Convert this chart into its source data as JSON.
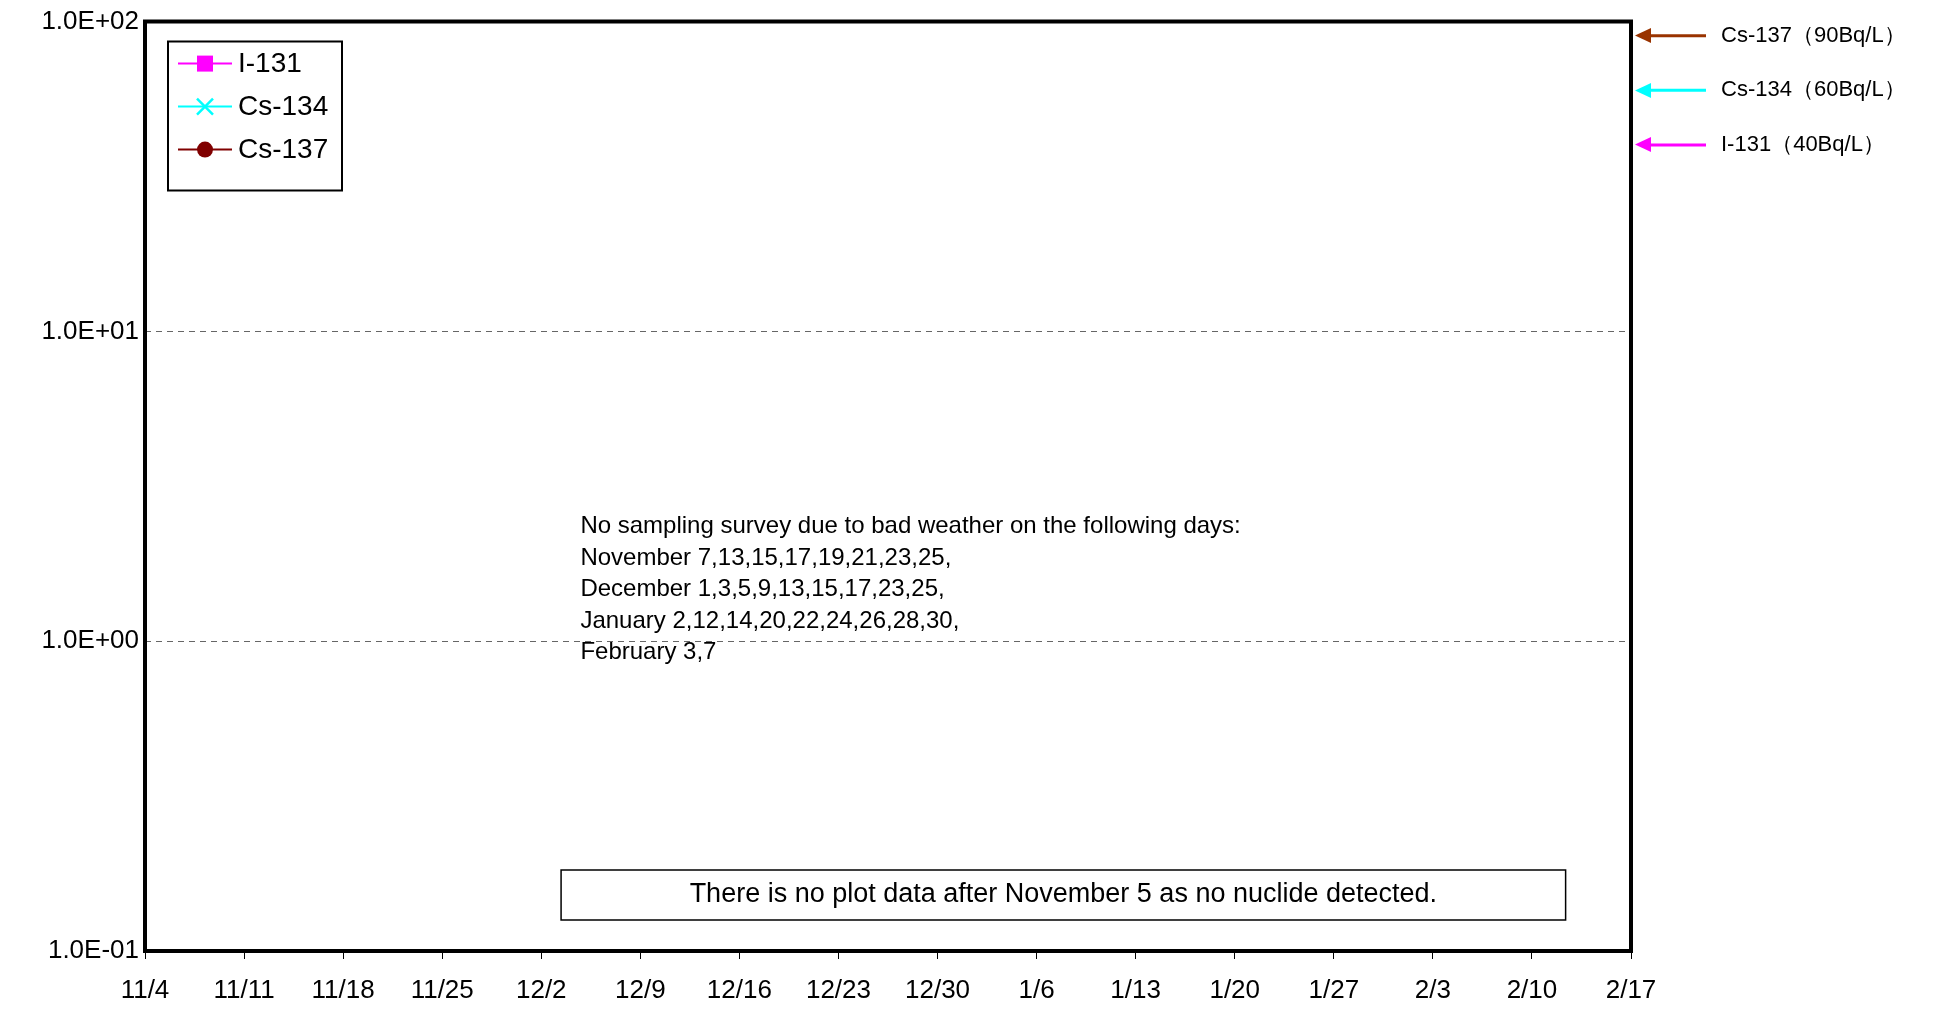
{
  "chart_data": {
    "type": "line",
    "log": "y",
    "categories": [
      "11/4",
      "11/11",
      "11/18",
      "11/25",
      "12/2",
      "12/9",
      "12/16",
      "12/23",
      "12/30",
      "1/6",
      "1/13",
      "1/20",
      "1/27",
      "2/3",
      "2/10",
      "2/17"
    ],
    "ylim": [
      0.1,
      100
    ],
    "yticks": [
      {
        "value": 0.1,
        "label": "1.0E-01"
      },
      {
        "value": 1,
        "label": "1.0E+00"
      },
      {
        "value": 10,
        "label": "1.0E+01"
      },
      {
        "value": 100,
        "label": "1.0E+02"
      }
    ],
    "grid": "y",
    "legend": "top left",
    "series": [
      {
        "name": "I-131",
        "color": "#ff00ff",
        "marker": "square",
        "values": [
          null,
          null,
          null,
          null,
          null,
          null,
          null,
          null,
          null,
          null,
          null,
          null,
          null,
          null,
          null,
          null
        ]
      },
      {
        "name": "Cs-134",
        "color": "#00ffff",
        "marker": "cross",
        "values": [
          null,
          null,
          null,
          null,
          null,
          null,
          null,
          null,
          null,
          null,
          null,
          null,
          null,
          null,
          null,
          null
        ]
      },
      {
        "name": "Cs-137",
        "color": "#800000",
        "marker": "circle",
        "values": [
          null,
          null,
          null,
          null,
          null,
          null,
          null,
          null,
          null,
          null,
          null,
          null,
          null,
          null,
          null,
          null
        ]
      }
    ],
    "ref_lines": [
      {
        "axis": "y",
        "value": 90,
        "label": "Cs-137（90Bq/L）",
        "color": "#993300"
      },
      {
        "axis": "y",
        "value": 60,
        "label": "Cs-134（60Bq/L）",
        "color": "#00ffff"
      },
      {
        "axis": "y",
        "value": 40,
        "label": "I-131（40Bq/L）",
        "color": "#ff00ff"
      }
    ],
    "annotations": [
      "No sampling survey due to bad weather on the following days:\nNovember 7,13,15,17,19,21,23,25,\nDecember 1,3,5,9,13,15,17,23,25,\nJanuary 2,12,14,20,22,24,26,28,30,\nFebruary 3,7",
      "There is no plot data after November 5 as no nuclide detected."
    ]
  }
}
